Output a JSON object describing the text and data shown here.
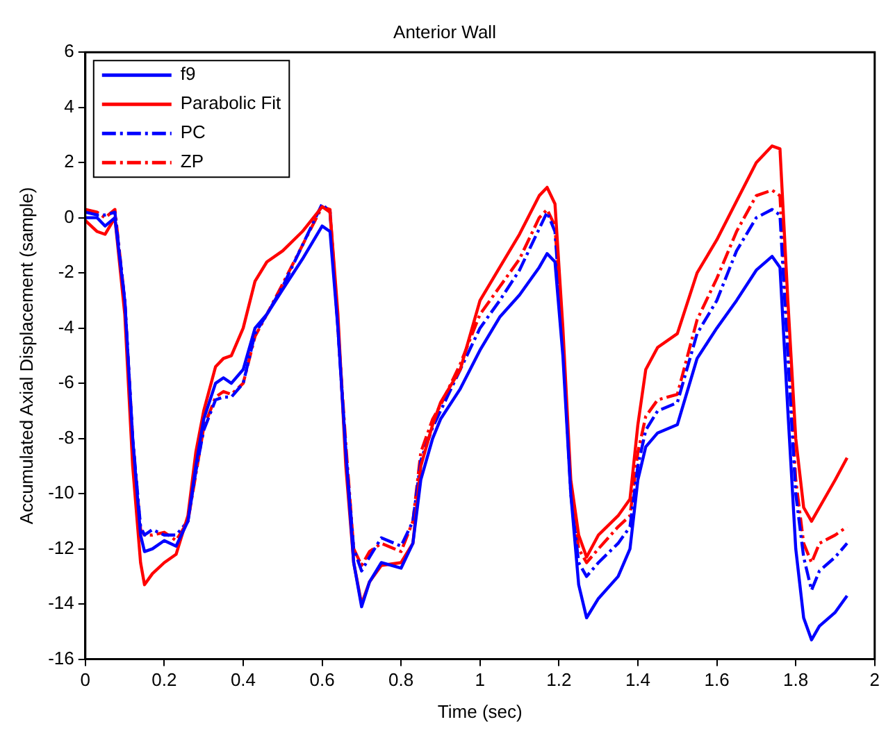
{
  "chart_data": {
    "type": "line",
    "title": "Anterior Wall",
    "xlabel": "Time (sec)",
    "ylabel": "Accumulated Axial Displacement (sample)",
    "x": [
      0,
      0.03,
      0.05,
      0.075,
      0.1,
      0.12,
      0.14,
      0.15,
      0.17,
      0.2,
      0.23,
      0.26,
      0.28,
      0.3,
      0.33,
      0.35,
      0.37,
      0.4,
      0.43,
      0.46,
      0.5,
      0.55,
      0.6,
      0.62,
      0.64,
      0.66,
      0.68,
      0.7,
      0.72,
      0.75,
      0.8,
      0.83,
      0.85,
      0.88,
      0.9,
      0.95,
      1.0,
      1.05,
      1.1,
      1.15,
      1.17,
      1.19,
      1.21,
      1.23,
      1.25,
      1.27,
      1.3,
      1.35,
      1.38,
      1.4,
      1.42,
      1.45,
      1.5,
      1.55,
      1.6,
      1.65,
      1.7,
      1.74,
      1.76,
      1.78,
      1.8,
      1.82,
      1.84,
      1.86,
      1.9,
      1.93
    ],
    "series": [
      {
        "name": "f9",
        "color": "#0000ff",
        "line_style": "solid",
        "values": [
          0,
          0,
          -0.3,
          0,
          -3,
          -8,
          -11.5,
          -12.1,
          -12,
          -11.7,
          -11.9,
          -11,
          -9,
          -7.3,
          -6,
          -5.8,
          -6,
          -5.5,
          -4,
          -3.5,
          -2.6,
          -1.5,
          -0.3,
          -0.5,
          -4,
          -8.5,
          -12.5,
          -14.1,
          -13.2,
          -12.5,
          -12.7,
          -11.8,
          -9.5,
          -8,
          -7.3,
          -6.2,
          -4.8,
          -3.6,
          -2.8,
          -1.8,
          -1.3,
          -1.6,
          -5,
          -10,
          -13.3,
          -14.5,
          -13.8,
          -13,
          -12,
          -9.5,
          -8.3,
          -7.8,
          -7.5,
          -5.1,
          -4,
          -3,
          -1.9,
          -1.4,
          -1.8,
          -7,
          -12,
          -14.5,
          -15.3,
          -14.8,
          -14.3,
          -13.7
        ]
      },
      {
        "name": "Parabolic Fit",
        "color": "#ff0000",
        "line_style": "solid",
        "values": [
          -0.1,
          -0.5,
          -0.6,
          0,
          -3.5,
          -9,
          -12.5,
          -13.3,
          -12.9,
          -12.5,
          -12.2,
          -10.8,
          -8.5,
          -7,
          -5.4,
          -5.1,
          -5,
          -4,
          -2.3,
          -1.6,
          -1.2,
          -0.5,
          0.4,
          0.2,
          -3.5,
          -9,
          -12.5,
          -14,
          -13.2,
          -12.6,
          -12.5,
          -11.8,
          -9,
          -7.5,
          -6.7,
          -5.5,
          -3,
          -1.8,
          -0.6,
          0.8,
          1.1,
          0.5,
          -4,
          -9.5,
          -11.5,
          -12.3,
          -11.5,
          -10.8,
          -10.2,
          -7.5,
          -5.5,
          -4.7,
          -4.2,
          -2,
          -0.8,
          0.6,
          2,
          2.6,
          2.5,
          -3,
          -8,
          -10.5,
          -11,
          -10.5,
          -9.5,
          -8.7
        ]
      },
      {
        "name": "PC",
        "color": "#0000ff",
        "line_style": "dashed",
        "values": [
          0.2,
          0.1,
          0.1,
          0.2,
          -3,
          -8,
          -11.2,
          -11.5,
          -11.3,
          -11.5,
          -11.5,
          -11,
          -9.2,
          -7.7,
          -6.6,
          -6.5,
          -6.5,
          -6,
          -4.2,
          -3.5,
          -2.5,
          -1,
          0.5,
          0.2,
          -4,
          -8.5,
          -12,
          -12.8,
          -12.3,
          -11.6,
          -11.9,
          -11,
          -8.8,
          -7.6,
          -7,
          -5.5,
          -4,
          -3,
          -1.9,
          -0.4,
          0.2,
          -0.5,
          -4.5,
          -10,
          -12.5,
          -13,
          -12.5,
          -11.8,
          -11.2,
          -9,
          -7.7,
          -7,
          -6.7,
          -4.2,
          -3,
          -1.2,
          0,
          0.3,
          0.1,
          -5,
          -10,
          -12.3,
          -13.5,
          -12.8,
          -12.3,
          -11.8
        ]
      },
      {
        "name": "ZP",
        "color": "#ff0000",
        "line_style": "dashed",
        "values": [
          0.3,
          0.2,
          0,
          0.3,
          -3,
          -8,
          -11.3,
          -11.5,
          -11.5,
          -11.4,
          -11.7,
          -11,
          -9.3,
          -7.6,
          -6.5,
          -6.3,
          -6.4,
          -6,
          -4.3,
          -3.5,
          -2.4,
          -1,
          0.4,
          0.3,
          -4,
          -8.2,
          -12,
          -12.6,
          -12.1,
          -11.8,
          -12.1,
          -11,
          -8.5,
          -7.3,
          -6.8,
          -5.3,
          -3.5,
          -2.5,
          -1.5,
          0,
          0.3,
          -0.3,
          -4.5,
          -9.8,
          -12,
          -12.5,
          -12,
          -11.2,
          -10.8,
          -8.5,
          -7.2,
          -6.6,
          -6.4,
          -3.7,
          -2.2,
          -0.5,
          0.8,
          1,
          0.8,
          -4.5,
          -9.5,
          -11.8,
          -12.5,
          -11.8,
          -11.5,
          -11.2
        ]
      }
    ],
    "xlim": [
      0,
      2
    ],
    "xticks": [
      0,
      0.2,
      0.4,
      0.6,
      0.8,
      1,
      1.2,
      1.4,
      1.6,
      1.8,
      2
    ],
    "ylim": [
      -16,
      6
    ],
    "yticks": [
      -16,
      -14,
      -12,
      -10,
      -8,
      -6,
      -4,
      -2,
      0,
      2,
      4,
      6
    ],
    "legend": "top left",
    "grid": false
  }
}
